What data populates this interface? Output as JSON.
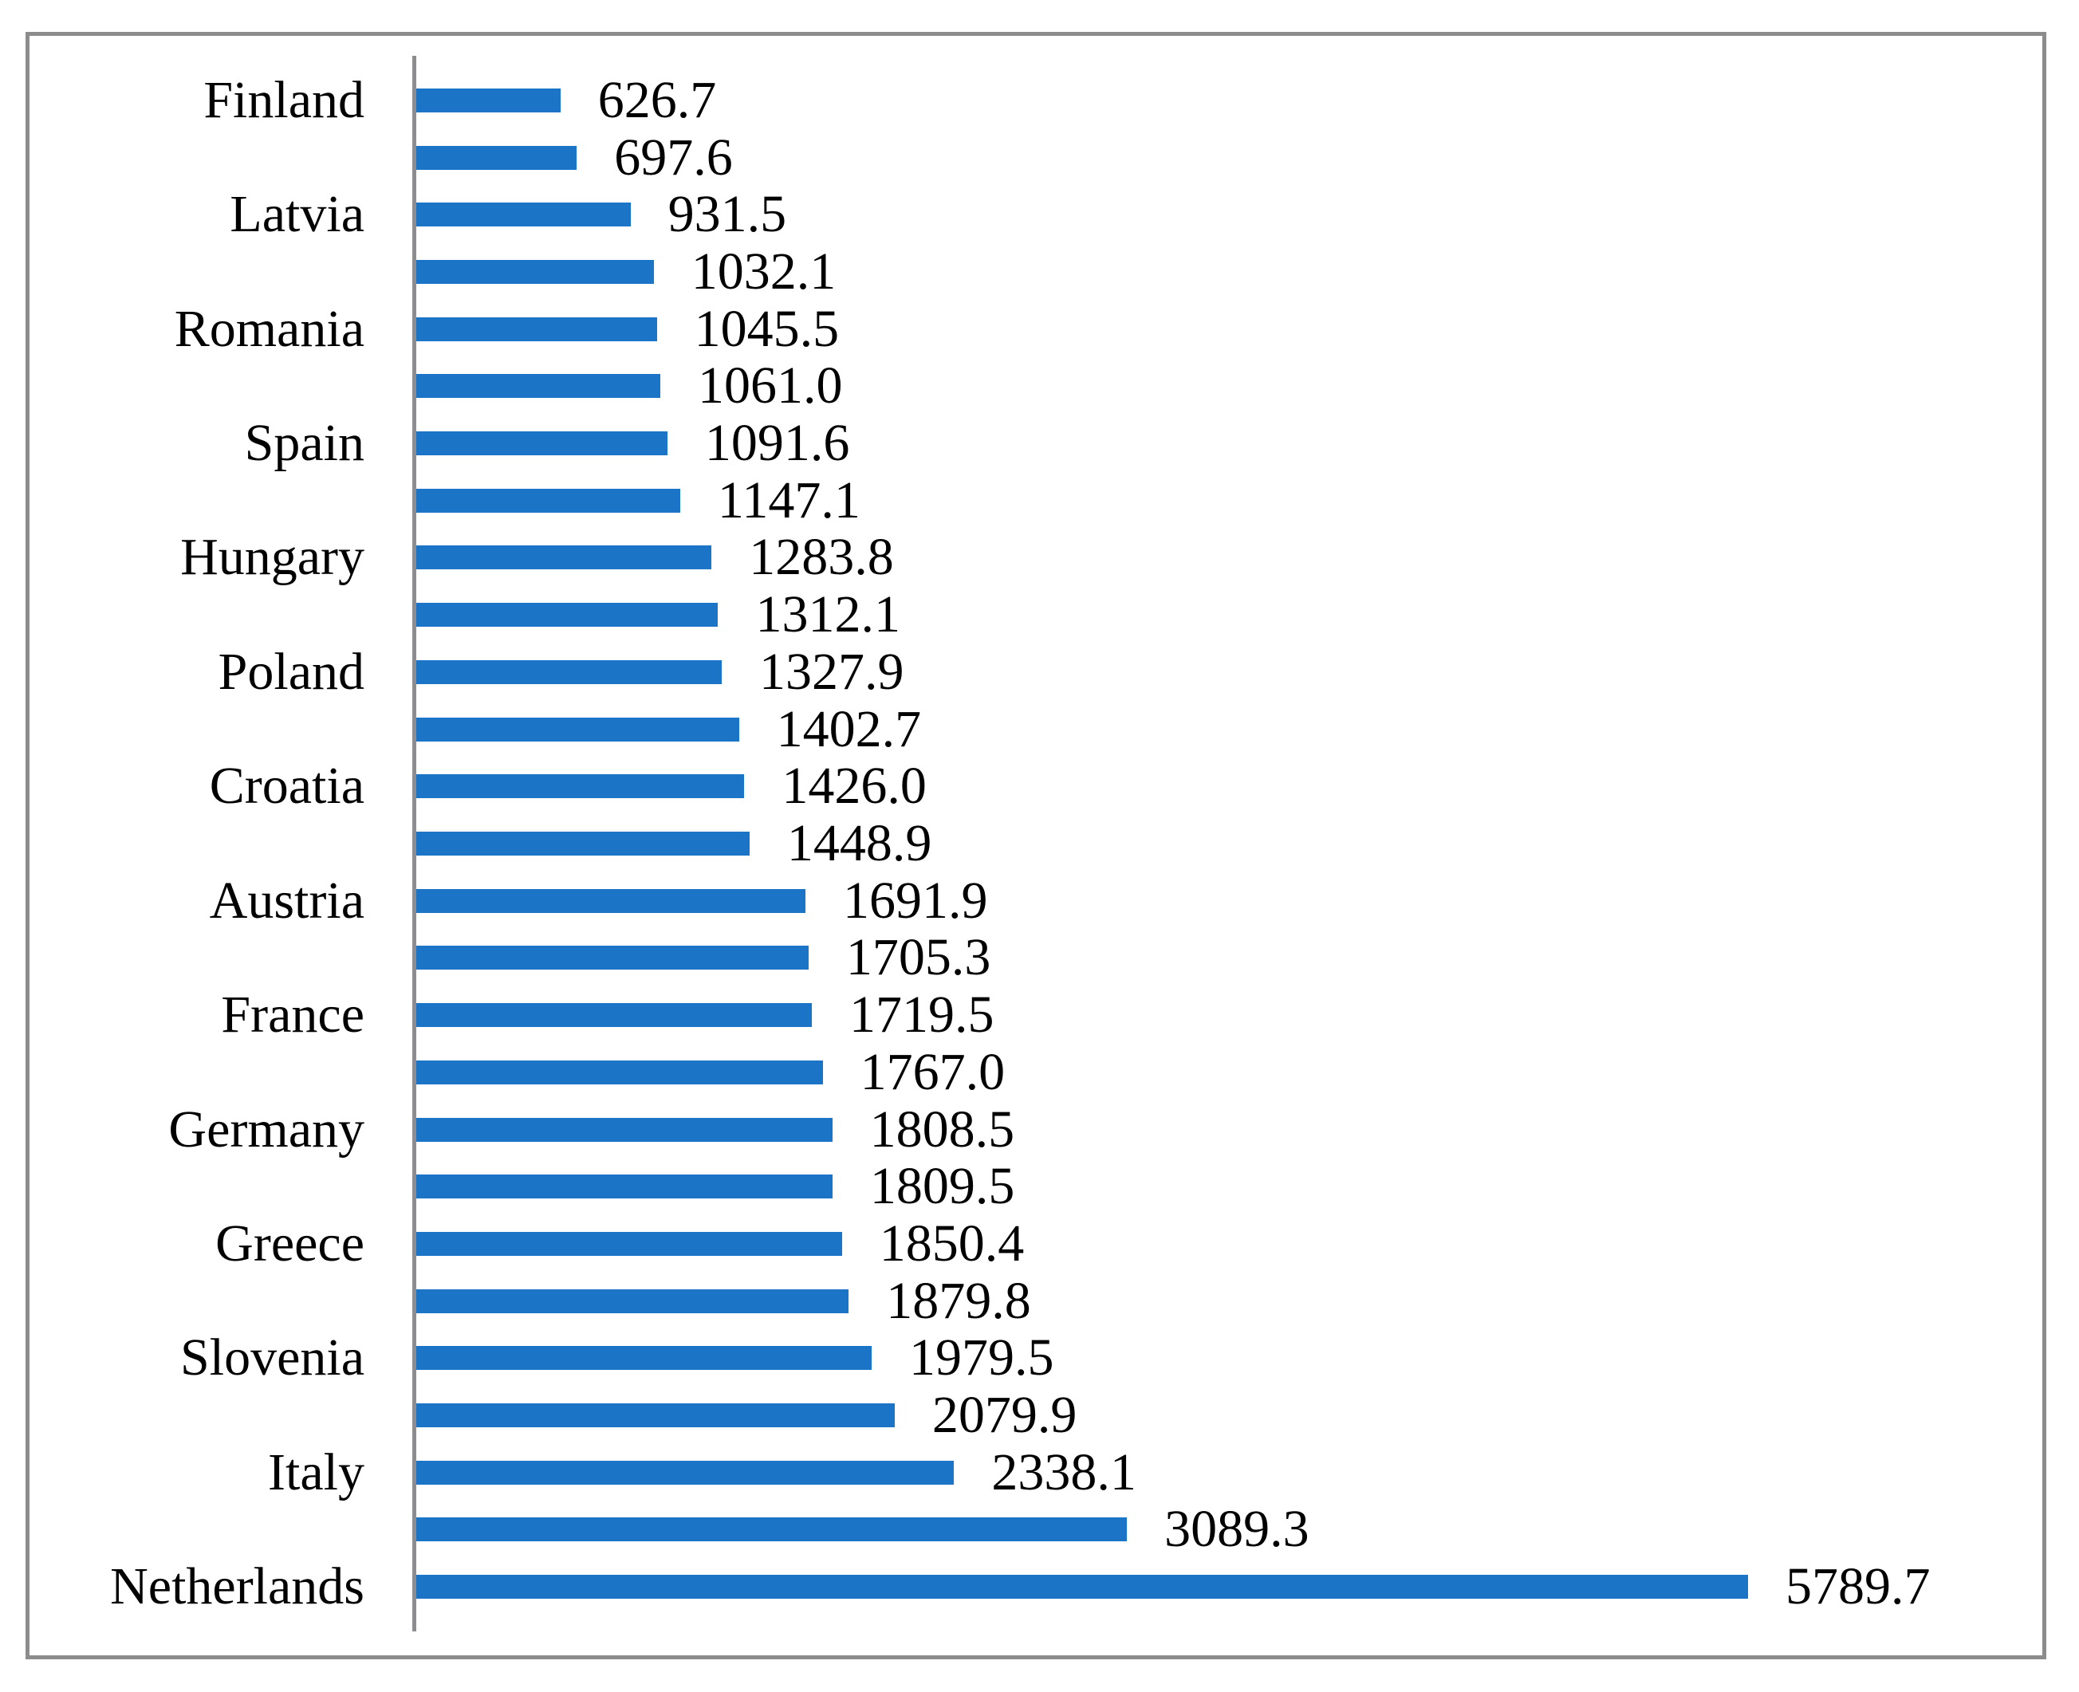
{
  "figure": {
    "background": "#ffffff",
    "border_color": "#8C8C8C"
  },
  "chart_data": {
    "type": "bar",
    "orientation": "horizontal",
    "title": "",
    "xlabel": "",
    "ylabel": "",
    "grid": false,
    "legend": false,
    "value_labels_shown": true,
    "category_label_interval": 2,
    "bar_color": "#1B74C5",
    "axis_line_color": "#8C8C91",
    "xlim": [
      0,
      6965
    ],
    "bars": [
      {
        "category": "Finland",
        "value": 626.7,
        "label": "626.7"
      },
      {
        "category": "",
        "value": 697.6,
        "label": "697.6"
      },
      {
        "category": "Latvia",
        "value": 931.5,
        "label": "931.5"
      },
      {
        "category": "",
        "value": 1032.1,
        "label": "1032.1"
      },
      {
        "category": "Romania",
        "value": 1045.5,
        "label": "1045.5"
      },
      {
        "category": "",
        "value": 1061.0,
        "label": "1061.0"
      },
      {
        "category": "Spain",
        "value": 1091.6,
        "label": "1091.6"
      },
      {
        "category": "",
        "value": 1147.1,
        "label": "1147.1"
      },
      {
        "category": "Hungary",
        "value": 1283.8,
        "label": "1283.8"
      },
      {
        "category": "",
        "value": 1312.1,
        "label": "1312.1"
      },
      {
        "category": "Poland",
        "value": 1327.9,
        "label": "1327.9"
      },
      {
        "category": "",
        "value": 1402.7,
        "label": "1402.7"
      },
      {
        "category": "Croatia",
        "value": 1426.0,
        "label": "1426.0"
      },
      {
        "category": "",
        "value": 1448.9,
        "label": "1448.9"
      },
      {
        "category": "Austria",
        "value": 1691.9,
        "label": "1691.9"
      },
      {
        "category": "",
        "value": 1705.3,
        "label": "1705.3"
      },
      {
        "category": "France",
        "value": 1719.5,
        "label": "1719.5"
      },
      {
        "category": "",
        "value": 1767.0,
        "label": "1767.0"
      },
      {
        "category": "Germany",
        "value": 1808.5,
        "label": "1808.5"
      },
      {
        "category": "",
        "value": 1809.5,
        "label": "1809.5"
      },
      {
        "category": "Greece",
        "value": 1850.4,
        "label": "1850.4"
      },
      {
        "category": "",
        "value": 1879.8,
        "label": "1879.8"
      },
      {
        "category": "Slovenia",
        "value": 1979.5,
        "label": "1979.5"
      },
      {
        "category": "",
        "value": 2079.9,
        "label": "2079.9"
      },
      {
        "category": "Italy",
        "value": 2338.1,
        "label": "2338.1"
      },
      {
        "category": "",
        "value": 3089.3,
        "label": "3089.3"
      },
      {
        "category": "Netherlands",
        "value": 5789.7,
        "label": "5789.7"
      }
    ]
  }
}
